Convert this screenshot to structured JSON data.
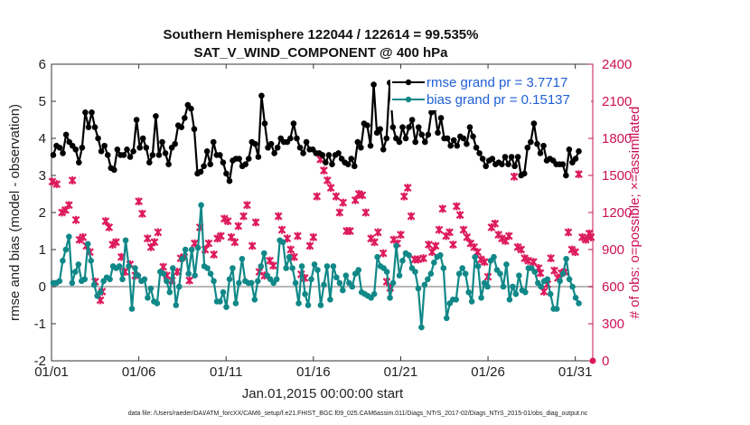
{
  "chart_data": {
    "type": "line",
    "title": "Southern Hemisphere 122044 / 122614 = 99.535%",
    "subtitle": "SAT_V_WIND_COMPONENT @ 400 hPa",
    "xlabel": "Jan.01,2015 00:00:00 start",
    "ylabel": "rmse and bias (model - observation)",
    "y2label": "# of obs: o=possible; ×=assimilated",
    "footer": "data file: /Users/raeder/DAI/ATM_forcXX/CAM6_setup/f.e21.FHIST_BGC.f09_025.CAM6assim.011/Diags_NTrS_2017-02/Diags_NTrS_2015-01/obs_diag_output.nc",
    "xlim": [
      1,
      32
    ],
    "ylim": [
      -2,
      6
    ],
    "y2lim": [
      0,
      2400
    ],
    "grid": false,
    "legend_position": "top-right",
    "xticks": [
      {
        "value": 1,
        "label": "01/01"
      },
      {
        "value": 6,
        "label": "01/06"
      },
      {
        "value": 11,
        "label": "01/11"
      },
      {
        "value": 16,
        "label": "01/16"
      },
      {
        "value": 21,
        "label": "01/21"
      },
      {
        "value": 26,
        "label": "01/26"
      },
      {
        "value": 31,
        "label": "01/31"
      }
    ],
    "yticks": [
      "-2",
      "-1",
      "0",
      "1",
      "2",
      "3",
      "4",
      "5",
      "6"
    ],
    "y2ticks": [
      "0",
      "300",
      "600",
      "900",
      "1200",
      "1500",
      "1800",
      "2100",
      "2400"
    ],
    "series": [
      {
        "name": "rmse grand pr = 3.7717",
        "color": "#000000",
        "marker": "circle",
        "values": [
          3.55,
          3.8,
          3.75,
          3.6,
          4.1,
          3.9,
          3.8,
          3.7,
          3.35,
          3.75,
          4.7,
          4.3,
          4.7,
          4.3,
          4.0,
          3.65,
          3.8,
          3.55,
          3.2,
          3.15,
          3.7,
          3.55,
          3.55,
          3.7,
          3.5,
          3.65,
          4.5,
          3.75,
          4.0,
          3.75,
          3.35,
          3.55,
          4.6,
          3.55,
          3.9,
          3.6,
          3.3,
          3.75,
          3.85,
          4.35,
          4.3,
          4.55,
          4.9,
          4.8,
          4.25,
          3.05,
          3.1,
          3.25,
          3.65,
          3.3,
          3.9,
          3.55,
          3.55,
          3.35,
          3.05,
          2.85,
          3.4,
          3.45,
          3.45,
          3.25,
          3.3,
          3.45,
          3.9,
          3.85,
          3.5,
          5.15,
          4.4,
          3.75,
          3.85,
          3.6,
          3.75,
          4.0,
          3.9,
          3.9,
          4.0,
          4.4,
          4.0,
          3.75,
          3.6,
          3.9,
          3.7,
          3.7,
          3.6,
          3.6,
          3.55,
          3.35,
          3.55,
          3.3,
          3.55,
          3.6,
          3.45,
          3.35,
          3.3,
          3.45,
          3.25,
          3.9,
          3.75,
          4.4,
          4.35,
          3.8,
          5.45,
          4.15,
          4.25,
          3.7,
          4.0,
          5.5,
          4.3,
          4.0,
          3.9,
          4.3,
          4.0,
          4.3,
          4.5,
          3.9,
          4.3,
          4.1,
          3.9,
          4.1,
          4.7,
          4.8,
          4.15,
          4.55,
          4.0,
          4.0,
          3.8,
          3.95,
          3.8,
          4.05,
          4.0,
          3.85,
          4.3,
          4.05,
          3.75,
          3.6,
          3.45,
          3.25,
          3.4,
          3.45,
          3.3,
          3.35,
          3.3,
          3.5,
          3.3,
          3.5,
          3.25,
          3.5,
          3.0,
          3.05,
          3.75,
          3.9,
          4.4,
          3.85,
          3.6,
          3.8,
          3.4,
          3.45,
          3.4,
          3.3,
          3.3,
          3.3,
          3.0,
          3.7,
          3.35,
          3.45,
          3.65
        ]
      },
      {
        "name": "bias grand pr = 0.15137",
        "color": "#118888",
        "marker": "circle",
        "values": [
          0.1,
          0.1,
          0.15,
          0.7,
          1.0,
          1.35,
          0.1,
          0.4,
          0.6,
          0.15,
          0.2,
          1.15,
          0.7,
          0.05,
          -0.25,
          -0.15,
          0.15,
          0.25,
          0.2,
          0.55,
          0.5,
          0.55,
          0.2,
          1.25,
          0.55,
          -0.6,
          0.5,
          0.3,
          0.15,
          0.2,
          -0.3,
          -0.05,
          -0.4,
          -0.45,
          0.4,
          0.35,
          0.15,
          -0.15,
          0.5,
          -0.5,
          0.0,
          0.75,
          1.0,
          0.35,
          1.0,
          0.3,
          1.05,
          2.2,
          0.55,
          0.5,
          0.35,
          0.15,
          -0.4,
          -0.4,
          -0.15,
          -0.55,
          0.2,
          0.5,
          -0.45,
          0.1,
          0.75,
          0.15,
          0.1,
          0.1,
          -0.35,
          0.15,
          0.55,
          0.9,
          0.3,
          0.2,
          0.1,
          0.2,
          1.25,
          1.2,
          0.5,
          0.8,
          0.5,
          0.1,
          -0.45,
          0.55,
          -0.2,
          -0.5,
          0.2,
          0.6,
          0.45,
          -0.5,
          0.05,
          0.55,
          -0.35,
          0.55,
          0.25,
          0.1,
          -0.1,
          0.3,
          0.1,
          0.0,
          0.35,
          0.45,
          -0.15,
          -0.2,
          -0.25,
          -0.3,
          -0.2,
          0.8,
          0.55,
          0.5,
          0.4,
          -0.3,
          0.1,
          1.1,
          0.3,
          0.7,
          0.9,
          0.85,
          0.5,
          0.4,
          -0.05,
          -1.1,
          0.05,
          0.2,
          0.35,
          0.65,
          0.8,
          0.85,
          0.5,
          -0.85,
          -0.45,
          -0.35,
          -0.35,
          0.35,
          0.5,
          0.35,
          -0.15,
          -0.4,
          0.8,
          0.55,
          -0.3,
          0.1,
          0.0,
          0.7,
          0.8,
          0.45,
          0.35,
          0.0,
          0.6,
          -0.35,
          0.0,
          -0.2,
          0.3,
          -0.1,
          -0.15,
          0.5,
          0.5,
          0.4,
          0.1,
          0.0,
          0.15,
          0.2,
          -0.2,
          -0.6,
          -0.6,
          0.15,
          0.35,
          0.75,
          0.2,
          0.0,
          -0.3,
          -0.45
        ]
      }
    ],
    "obs_points": [
      [
        1.05,
        1450
      ],
      [
        1.3,
        1430
      ],
      [
        1.6,
        1200
      ],
      [
        1.8,
        1220
      ],
      [
        2.0,
        1260
      ],
      [
        2.2,
        1460
      ],
      [
        2.4,
        1140
      ],
      [
        2.6,
        980
      ],
      [
        2.8,
        1000
      ],
      [
        3.0,
        930
      ],
      [
        3.2,
        880
      ],
      [
        3.5,
        640
      ],
      [
        3.8,
        490
      ],
      [
        3.9,
        560
      ],
      [
        4.1,
        1130
      ],
      [
        4.3,
        1080
      ],
      [
        4.5,
        940
      ],
      [
        4.7,
        960
      ],
      [
        5.0,
        840
      ],
      [
        5.2,
        720
      ],
      [
        5.5,
        780
      ],
      [
        5.8,
        690
      ],
      [
        6.0,
        1290
      ],
      [
        6.2,
        1190
      ],
      [
        6.5,
        990
      ],
      [
        6.7,
        920
      ],
      [
        6.9,
        960
      ],
      [
        7.1,
        1040
      ],
      [
        7.4,
        760
      ],
      [
        7.6,
        690
      ],
      [
        7.9,
        650
      ],
      [
        8.2,
        720
      ],
      [
        8.4,
        830
      ],
      [
        8.6,
        840
      ],
      [
        8.9,
        650
      ],
      [
        9.2,
        950
      ],
      [
        9.5,
        1080
      ],
      [
        9.8,
        900
      ],
      [
        10.0,
        950
      ],
      [
        10.3,
        860
      ],
      [
        10.5,
        990
      ],
      [
        10.7,
        1010
      ],
      [
        10.9,
        1150
      ],
      [
        11.1,
        1130
      ],
      [
        11.3,
        1000
      ],
      [
        11.5,
        960
      ],
      [
        11.7,
        1090
      ],
      [
        12.0,
        1170
      ],
      [
        12.2,
        1260
      ],
      [
        12.5,
        930
      ],
      [
        12.7,
        1120
      ],
      [
        12.9,
        720
      ],
      [
        13.2,
        690
      ],
      [
        13.5,
        810
      ],
      [
        13.7,
        770
      ],
      [
        14.0,
        1170
      ],
      [
        14.2,
        1060
      ],
      [
        14.5,
        990
      ],
      [
        14.7,
        900
      ],
      [
        14.9,
        840
      ],
      [
        15.1,
        1010
      ],
      [
        15.3,
        700
      ],
      [
        15.5,
        670
      ],
      [
        15.8,
        930
      ],
      [
        16.0,
        1000
      ],
      [
        16.2,
        1330
      ],
      [
        16.4,
        1630
      ],
      [
        16.6,
        1540
      ],
      [
        16.8,
        1460
      ],
      [
        17.0,
        1400
      ],
      [
        17.3,
        1330
      ],
      [
        17.5,
        1200
      ],
      [
        17.7,
        1280
      ],
      [
        17.9,
        1050
      ],
      [
        18.1,
        1050
      ],
      [
        18.4,
        1300
      ],
      [
        18.6,
        1350
      ],
      [
        18.8,
        1340
      ],
      [
        19.0,
        1200
      ],
      [
        19.3,
        990
      ],
      [
        19.5,
        960
      ],
      [
        19.7,
        1040
      ],
      [
        20.0,
        870
      ],
      [
        20.2,
        640
      ],
      [
        20.4,
        590
      ],
      [
        20.6,
        980
      ],
      [
        20.8,
        950
      ],
      [
        21.0,
        1020
      ],
      [
        21.2,
        1330
      ],
      [
        21.4,
        1400
      ],
      [
        21.6,
        1170
      ],
      [
        21.8,
        820
      ],
      [
        22.0,
        820
      ],
      [
        22.3,
        830
      ],
      [
        22.6,
        940
      ],
      [
        22.8,
        880
      ],
      [
        23.0,
        930
      ],
      [
        23.2,
        1060
      ],
      [
        23.4,
        1230
      ],
      [
        23.6,
        1010
      ],
      [
        23.8,
        1040
      ],
      [
        24.0,
        940
      ],
      [
        24.2,
        1250
      ],
      [
        24.4,
        1180
      ],
      [
        24.6,
        1060
      ],
      [
        24.8,
        1000
      ],
      [
        25.0,
        950
      ],
      [
        25.2,
        920
      ],
      [
        25.4,
        880
      ],
      [
        25.6,
        820
      ],
      [
        25.8,
        800
      ],
      [
        26.0,
        680
      ],
      [
        26.2,
        1080
      ],
      [
        26.4,
        1110
      ],
      [
        26.6,
        1020
      ],
      [
        26.8,
        990
      ],
      [
        27.0,
        970
      ],
      [
        27.2,
        1010
      ],
      [
        27.5,
        1490
      ],
      [
        27.7,
        920
      ],
      [
        27.9,
        900
      ],
      [
        28.1,
        830
      ],
      [
        28.3,
        810
      ],
      [
        28.6,
        800
      ],
      [
        28.9,
        750
      ],
      [
        29.0,
        710
      ],
      [
        29.2,
        560
      ],
      [
        29.4,
        620
      ],
      [
        29.6,
        830
      ],
      [
        29.8,
        730
      ],
      [
        30.0,
        670
      ],
      [
        30.2,
        710
      ],
      [
        30.4,
        720
      ],
      [
        30.6,
        1040
      ],
      [
        30.8,
        900
      ],
      [
        31.0,
        880
      ],
      [
        31.2,
        1510
      ],
      [
        31.4,
        1000
      ],
      [
        31.6,
        980
      ],
      [
        31.8,
        1030
      ],
      [
        31.9,
        1000
      ]
    ],
    "zero_line": 0
  }
}
